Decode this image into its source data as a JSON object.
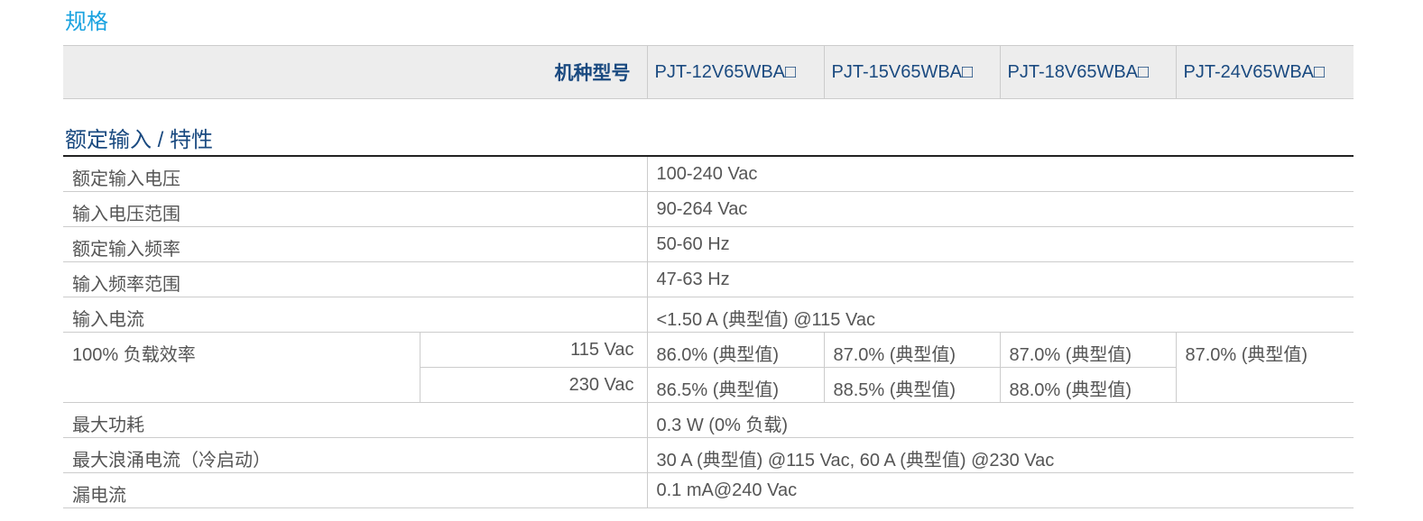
{
  "title": "规格",
  "header": {
    "label": "机种型号",
    "models": [
      "PJT-12V65WBA□",
      "PJT-15V65WBA□",
      "PJT-18V65WBA□",
      "PJT-24V65WBA□"
    ]
  },
  "section": "额定输入 / 特性",
  "rows": [
    {
      "label": "额定输入电压",
      "value": "100-240 Vac"
    },
    {
      "label": "输入电压范围",
      "value": "90-264 Vac"
    },
    {
      "label": "额定输入频率",
      "value": "50-60 Hz"
    },
    {
      "label": "输入频率范围",
      "value": "47-63 Hz"
    },
    {
      "label": "输入电流",
      "value": "<1.50 A (典型值) @115 Vac"
    }
  ],
  "efficiency": {
    "label": "100% 负载效率",
    "sub": [
      "115 Vac",
      "230 Vac"
    ],
    "v115": [
      "86.0% (典型值)",
      "87.0% (典型值)",
      "87.0% (典型值)",
      "87.0% (典型值)"
    ],
    "v230": [
      "86.5% (典型值)",
      "88.5% (典型值)",
      "88.0% (典型值)"
    ]
  },
  "rows2": [
    {
      "label": "最大功耗",
      "value": "0.3 W (0% 负载)"
    },
    {
      "label": "最大浪涌电流（冷启动）",
      "value": "30 A (典型值) @115 Vac, 60 A (典型值) @230 Vac"
    },
    {
      "label": "漏电流",
      "value": "0.1 mA@240 Vac"
    }
  ]
}
